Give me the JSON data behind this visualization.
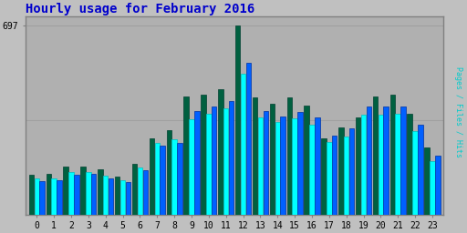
{
  "title": "Hourly usage for February 2016",
  "ylabel_right": "Pages / Files / Hits",
  "ytick_label": "697",
  "hours": [
    0,
    1,
    2,
    3,
    4,
    5,
    6,
    7,
    8,
    9,
    10,
    11,
    12,
    13,
    14,
    15,
    16,
    17,
    18,
    19,
    20,
    21,
    22,
    23
  ],
  "hits": [
    145,
    150,
    175,
    178,
    165,
    138,
    188,
    282,
    310,
    435,
    442,
    462,
    697,
    432,
    408,
    432,
    402,
    282,
    320,
    358,
    435,
    442,
    372,
    248
  ],
  "pages": [
    132,
    132,
    155,
    155,
    142,
    125,
    172,
    262,
    278,
    352,
    372,
    392,
    518,
    358,
    342,
    355,
    332,
    268,
    288,
    368,
    368,
    372,
    308,
    198
  ],
  "files": [
    122,
    125,
    145,
    148,
    132,
    120,
    162,
    252,
    262,
    382,
    398,
    418,
    558,
    382,
    362,
    378,
    358,
    292,
    318,
    398,
    398,
    398,
    332,
    218
  ],
  "color_hits": "#006040",
  "color_pages": "#00ffff",
  "color_files": "#0060ff",
  "color_hits_edge": "#004030",
  "color_pages_edge": "#00c0c0",
  "color_files_edge": "#0030a0",
  "bg_color": "#c0c0c0",
  "plot_bg_color": "#b0b0b0",
  "title_color": "#0000cc",
  "ylabel_right_color": "#00cccc",
  "border_color": "#808080",
  "grid_color": "#a0a0a0",
  "ylim_max": 730,
  "bar_width": 0.29,
  "bar_gap": 0.02,
  "title_fontsize": 10,
  "tick_fontsize": 7
}
